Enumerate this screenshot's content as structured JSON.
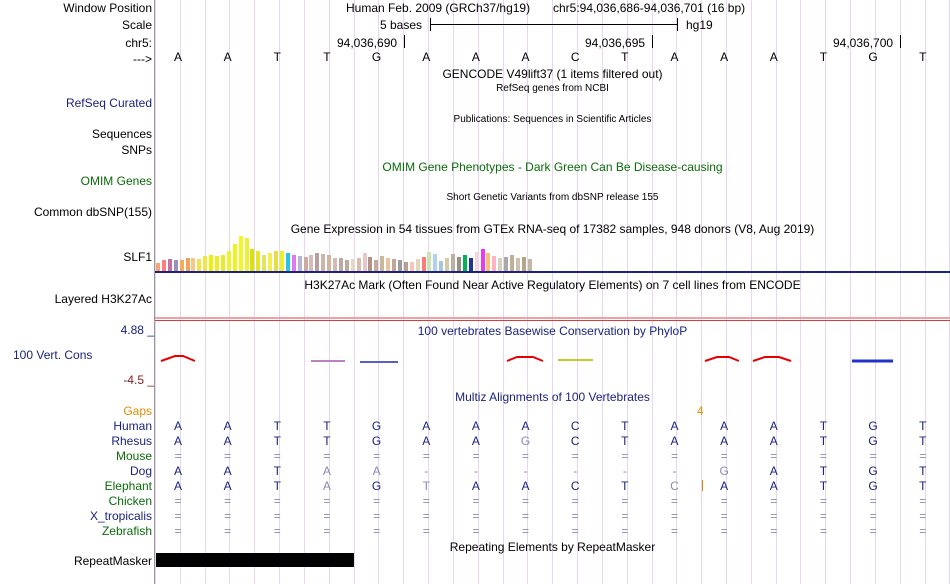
{
  "header": {
    "window_position_label": "Window Position",
    "assembly_text": "Human Feb. 2009 (GRCh37/hg19)",
    "position_text": "chr5:94,036,686-94,036,701 (16 bp)",
    "scale_label": "Scale",
    "scale_text": "5 bases",
    "scale_db": "hg19",
    "chrom_label": "chr5:",
    "coord_ticks": [
      "94,036,690",
      "94,036,695",
      "94,036,700"
    ],
    "strand_label": "--->"
  },
  "reference_bases": [
    "A",
    "A",
    "T",
    "T",
    "G",
    "A",
    "A",
    "A",
    "C",
    "T",
    "A",
    "A",
    "A",
    "T",
    "G",
    "T"
  ],
  "tracks": {
    "gencode_title": "GENCODE V49lift37 (1 items filtered out)",
    "refseq_label": "RefSeq Curated",
    "refseq_title": "RefSeq genes from NCBI",
    "pubs_title": "Publications: Sequences in Scientific Articles",
    "sequences_label": "Sequences",
    "snps_label": "SNPs",
    "omim_title": "OMIM Gene Phenotypes - Dark Green Can Be Disease-causing",
    "omim_label": "OMIM Genes",
    "dbsnp_title": "Short Genetic Variants from dbSNP release 155",
    "dbsnp_label": "Common dbSNP(155)",
    "gtex_title": "Gene Expression in 54 tissues from GTEx RNA-seq of 17382 samples, 948 donors (V8, Aug 2019)",
    "gtex_label": "SLF1",
    "h3k27_title": "H3K27Ac Mark (Often Found Near Active Regulatory Elements) on 7 cell lines from ENCODE",
    "h3k27_label": "Layered H3K27Ac",
    "phylop_max": "4.88 _",
    "phylop_label": "100 Vert. Cons",
    "phylop_min": "-4.5 _",
    "phylop_title": "100 vertebrates Basewise Conservation by PhyloP",
    "multiz_title": "Multiz Alignments of 100 Vertebrates",
    "gaps_label": "Gaps",
    "gap_count": "4",
    "repeat_title": "Repeating Elements by RepeatMasker",
    "repeat_label": "RepeatMasker"
  },
  "gtex_heights": [
    8,
    11,
    12,
    11,
    11,
    13,
    13,
    12,
    15,
    16,
    15,
    16,
    20,
    27,
    35,
    33,
    22,
    20,
    16,
    18,
    20,
    20,
    18,
    16,
    15,
    14,
    16,
    18,
    17,
    16,
    13,
    13,
    11,
    12,
    13,
    18,
    14,
    11,
    15,
    13,
    12,
    11,
    9,
    9,
    12,
    14,
    19,
    17,
    10,
    13,
    17,
    14,
    16,
    13,
    19,
    22,
    18,
    15,
    13,
    14,
    16,
    13,
    14,
    12
  ],
  "gtex_colors": [
    "#f8a37a",
    "#ff7f7f",
    "#c46fa6",
    "#9b8fbc",
    "#f5ad59",
    "#f3a05c",
    "#f5c88a",
    "#f2e34c",
    "#f0e74a",
    "#ecf200",
    "#e9ef22",
    "#e5ec29",
    "#ebf42d",
    "#eff21c",
    "#f2f622",
    "#eef035",
    "#d9e10e",
    "#e4e726",
    "#e1e55c",
    "#f4ed53",
    "#e5df41",
    "#ecf02c",
    "#28c4e5",
    "#dd7aee",
    "#bab3d7",
    "#cda9a0",
    "#d4bdb6",
    "#b79fa0",
    "#cbb6ad",
    "#d0b49e",
    "#d4b9b5",
    "#baa8a5",
    "#c0a79a",
    "#e4d9c8",
    "#d9bdb0",
    "#e4c9c6",
    "#b1938a",
    "#c5a99a",
    "#c7b99a",
    "#e8c49f",
    "#c0a598",
    "#9b9b9b",
    "#b5a28e",
    "#fbc3b9",
    "#e3d6b8",
    "#ff7a7a",
    "#c9e3b1",
    "#b3d1ed",
    "#a7c7d8",
    "#d5c9a6",
    "#b9b1a2",
    "#9b8e86",
    "#02b359",
    "#1d3a8f",
    "#f2d6e0",
    "#e83af0",
    "#f2c27a",
    "#ffb3c7",
    "#d7d2bb",
    "#a9a9a9",
    "#c0b09a",
    "#d0c0b0",
    "#b3a58a",
    "#c4b7a2"
  ],
  "alignment": {
    "species": [
      {
        "name": "Human",
        "color": "navy",
        "bases": [
          "A",
          "A",
          "T",
          "T",
          "G",
          "A",
          "A",
          "A",
          "C",
          "T",
          "A",
          "A",
          "A",
          "T",
          "G",
          "T"
        ]
      },
      {
        "name": "Rhesus",
        "color": "navy",
        "bases": [
          "A",
          "A",
          "T",
          "T",
          "G",
          "A",
          "A",
          "G",
          "C",
          "T",
          "A",
          "A",
          "A",
          "T",
          "G",
          "T"
        ]
      },
      {
        "name": "Mouse",
        "color": "green",
        "bases": [
          "=",
          "=",
          "=",
          "=",
          "=",
          "=",
          "=",
          "=",
          "=",
          "=",
          "=",
          "=",
          "=",
          "=",
          "=",
          "="
        ]
      },
      {
        "name": "Dog",
        "color": "navy",
        "bases": [
          "A",
          "A",
          "T",
          "A",
          "A",
          "-",
          "-",
          "-",
          "-",
          "-",
          "-",
          "G",
          "A",
          "T",
          "G",
          "T"
        ]
      },
      {
        "name": "Elephant",
        "color": "green",
        "bases": [
          "A",
          "A",
          "T",
          "A",
          "G",
          "T",
          "A",
          "A",
          "C",
          "T",
          "C",
          "A",
          "A",
          "T",
          "G",
          "T"
        ]
      },
      {
        "name": "Chicken",
        "color": "green",
        "bases": [
          "=",
          "=",
          "=",
          "=",
          "=",
          "=",
          "=",
          "=",
          "=",
          "=",
          "=",
          "=",
          "=",
          "=",
          "=",
          "="
        ]
      },
      {
        "name": "X_tropicalis",
        "color": "navy",
        "bases": [
          "=",
          "=",
          "=",
          "=",
          "=",
          "=",
          "=",
          "=",
          "=",
          "=",
          "=",
          "=",
          "=",
          "=",
          "=",
          "="
        ]
      },
      {
        "name": "Zebrafish",
        "color": "green",
        "bases": [
          "=",
          "=",
          "=",
          "=",
          "=",
          "=",
          "=",
          "=",
          "=",
          "=",
          "=",
          "=",
          "=",
          "=",
          "=",
          "="
        ]
      }
    ],
    "mismatch": [
      [],
      [
        7
      ],
      [],
      [
        3,
        4,
        5,
        6,
        7,
        8,
        9,
        10,
        11
      ],
      [
        3,
        5,
        10
      ],
      [],
      [],
      []
    ]
  },
  "colors": {
    "label_navy": "#1a237e",
    "label_green": "#0a6b0a",
    "gaps_orange": "#e08a00",
    "navy_rule": "#1a237e",
    "phylop_red": "#e60000",
    "phylop_blue": "#2233cc"
  }
}
